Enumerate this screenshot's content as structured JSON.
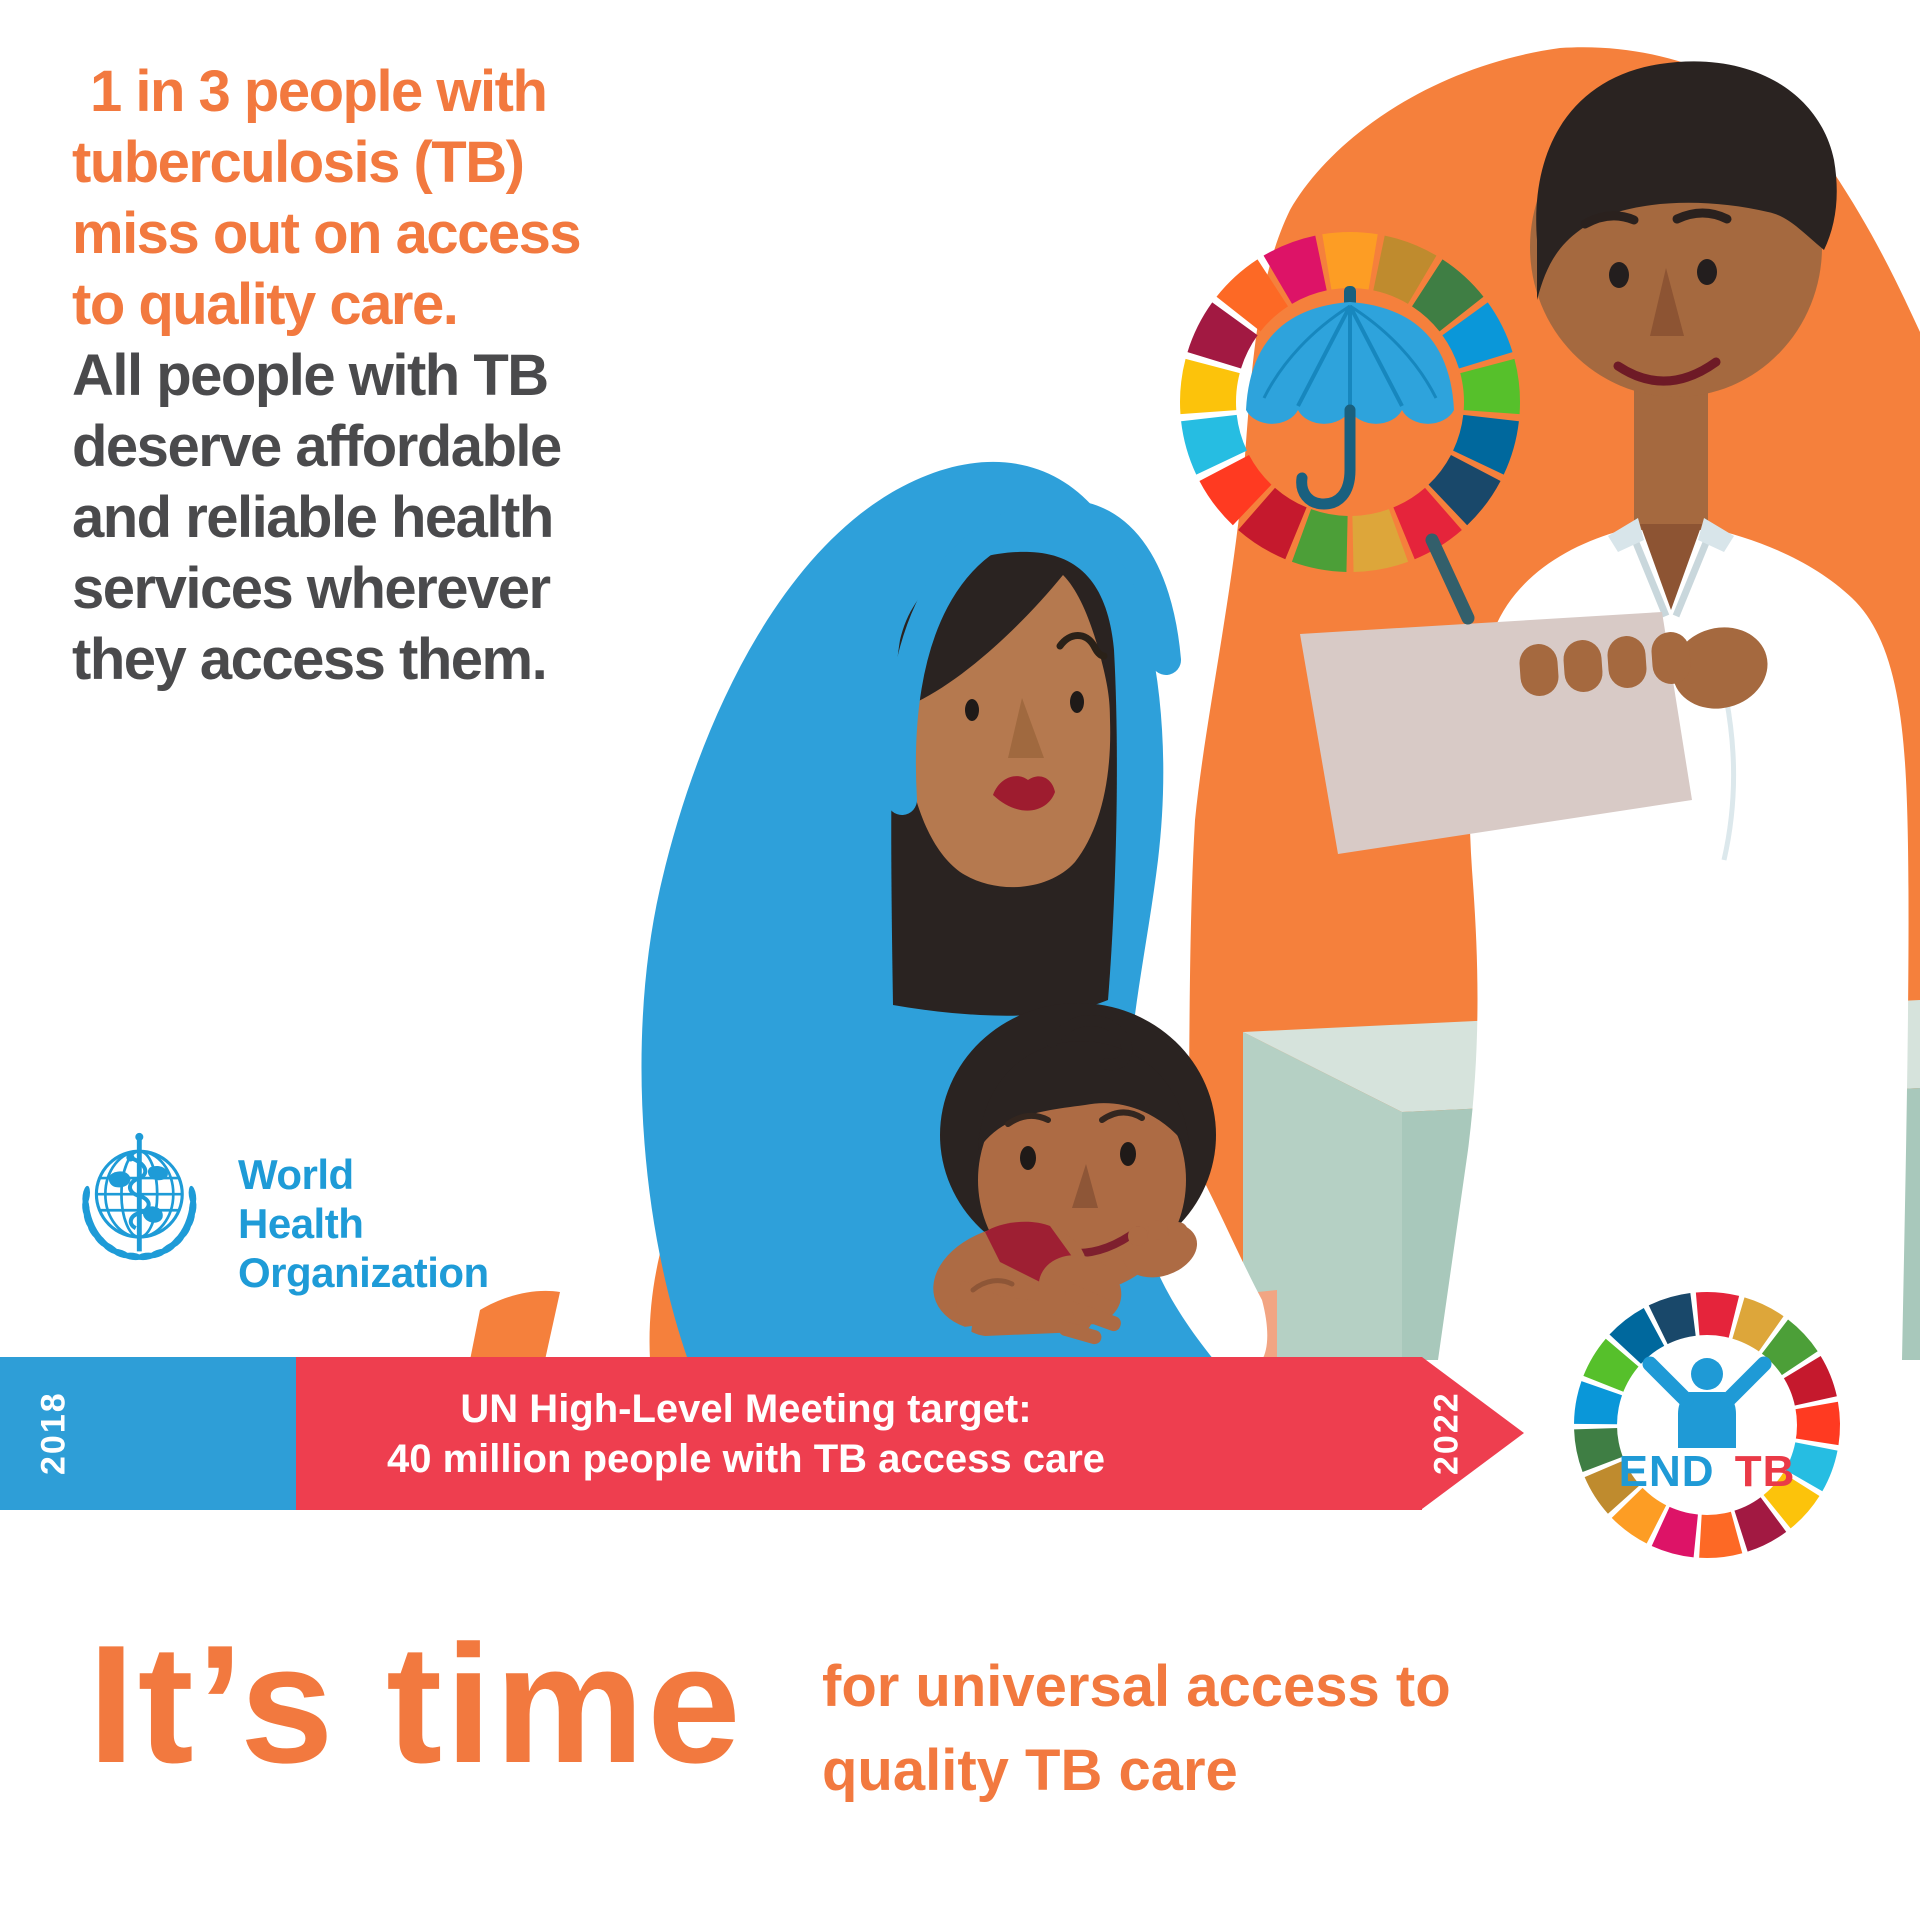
{
  "poster": {
    "headline": {
      "orange_lines": [
        "1 in 3 people with",
        "tuberculosis (TB)",
        "miss out on access",
        "to quality care."
      ],
      "dark_lines": [
        "All people with TB",
        "deserve affordable",
        "and reliable health",
        "services wherever",
        "they access them."
      ]
    },
    "who": {
      "name_line1": "World Health",
      "name_line2": "Organization"
    },
    "timeline": {
      "start_year": "2018",
      "end_year": "2022",
      "target_line1": "UN High-Level Meeting target:",
      "target_line2": "40 million people with TB access care"
    },
    "endtb": {
      "word_end": "END",
      "word_tb": "TB"
    },
    "tagline": {
      "big": "It’s time",
      "small_line1": "for universal access to",
      "small_line2": "quality TB care"
    }
  },
  "icons": {
    "sdg_wheel": "sdg-color-wheel",
    "umbrella": "umbrella",
    "who_emblem": "who-globe-staff-laurel",
    "endtb_person": "person-raised-arms",
    "timeline_arrow": "arrow-right"
  },
  "colors": {
    "orange_text": "#F2793F",
    "dark_text": "#4A4A4C",
    "blob_orange": "#F5803C",
    "banner_blue": "#2E9ED7",
    "banner_red": "#EE3E4F",
    "who_blue": "#1E9BD7",
    "scarf_blue": "#2EA0DA",
    "umbrella_blue": "#2EA3DC",
    "umbrella_rib": "#1787BE",
    "umbrella_handle": "#19607F",
    "desk_top": "#D6E3DC",
    "desk_left": "#B5D0C4",
    "desk_right": "#A8C8BB",
    "clipboard": "#D8CAC6",
    "pen": "#335F6B",
    "skin_doctor": "#A5693F",
    "skin_doctor_dark": "#8D5433",
    "skin_mother": "#B5794F",
    "skin_mother_dark": "#A0693F",
    "skin_child": "#AD6B44",
    "skin_child_dark": "#8E5637",
    "hair": "#2A2321",
    "lips": "#9E1C2F",
    "smile": "#6E1A26",
    "child_top_red": "#9E1F33",
    "peach": "#F2A583",
    "endtb_blue": "#1F9AD6",
    "endtb_red": "#EA3A47",
    "sdg": [
      "#E5243B",
      "#DDA63A",
      "#4C9F38",
      "#C5192D",
      "#FF3A21",
      "#26BDE2",
      "#FCC30B",
      "#A21942",
      "#FD6925",
      "#DD1367",
      "#FD9D24",
      "#BF8B2E",
      "#3F7E44",
      "#0A97D9",
      "#56C02B",
      "#00689D",
      "#19486A"
    ]
  }
}
